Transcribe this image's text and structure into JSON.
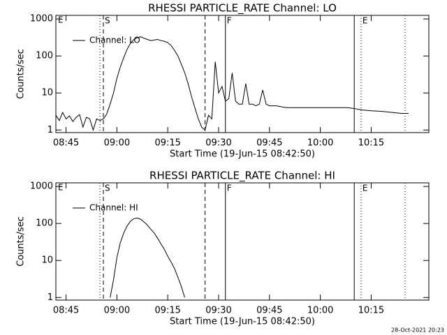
{
  "chart_data": [
    {
      "type": "line",
      "title": "RHESSI PARTICLE_RATE Channel: LO",
      "xlabel": "Start Time (19-Jun-15 08:42:50)",
      "ylabel": "Counts/sec",
      "log_y": true,
      "legend": "upper left",
      "start_label": "E",
      "xlim": [
        "08:42",
        "10:32"
      ],
      "xticks": [
        "08:45",
        "09:00",
        "09:15",
        "09:30",
        "09:45",
        "10:00",
        "10:15"
      ],
      "ylim": [
        0.85,
        1250
      ],
      "yticks": [
        1,
        10,
        100,
        1000
      ],
      "x": [
        "08:42",
        "08:43",
        "08:44",
        "08:45",
        "08:46",
        "08:47",
        "08:48",
        "08:49",
        "08:50",
        "08:51",
        "08:52",
        "08:53",
        "08:54",
        "08:55",
        "08:56",
        "08:57",
        "08:58",
        "08:59",
        "09:00",
        "09:01",
        "09:02",
        "09:03",
        "09:04",
        "09:05",
        "09:06",
        "09:07",
        "09:08",
        "09:09",
        "09:10",
        "09:11",
        "09:12",
        "09:13",
        "09:14",
        "09:15",
        "09:16",
        "09:17",
        "09:18",
        "09:19",
        "09:20",
        "09:21",
        "09:22",
        "09:23",
        "09:24",
        "09:25",
        "09:26",
        "09:27",
        "09:28",
        "09:29",
        "09:30",
        "09:31",
        "09:32",
        "09:33",
        "09:34",
        "09:35",
        "09:36",
        "09:37",
        "09:38",
        "09:39",
        "09:40",
        "09:41",
        "09:42",
        "09:43",
        "09:44",
        "09:45",
        "09:47",
        "09:50",
        "09:53",
        "09:56",
        "10:00",
        "10:04",
        "10:08",
        "10:10",
        "10:12",
        "10:15",
        "10:18",
        "10:21",
        "10:24",
        "10:26"
      ],
      "series": [
        {
          "name": "Channel: LO",
          "color": "#000000",
          "values": [
            2.5,
            1.8,
            3,
            2,
            2.4,
            1.7,
            2.2,
            2.6,
            1.2,
            2.2,
            2,
            1,
            2,
            1.8,
            2,
            2.7,
            5,
            10,
            25,
            50,
            90,
            150,
            220,
            280,
            310,
            330,
            300,
            280,
            260,
            270,
            280,
            260,
            250,
            230,
            190,
            140,
            100,
            60,
            35,
            18,
            8,
            4,
            2,
            1.2,
            1,
            2.5,
            2,
            70,
            10,
            15,
            6,
            7,
            35,
            6,
            5,
            5,
            18,
            5,
            5,
            4.5,
            5,
            12,
            5,
            4.5,
            4.5,
            4,
            4,
            4,
            4,
            4,
            4,
            3.8,
            3.5,
            3.3,
            3.2,
            3,
            2.8,
            2.8
          ]
        }
      ],
      "events": [
        {
          "time": "08:55",
          "style": "dotted"
        },
        {
          "time": "08:56",
          "style": "dashed",
          "label": "S"
        },
        {
          "time": "09:26",
          "style": "dashed"
        },
        {
          "time": "09:32",
          "style": "solid",
          "label": "F"
        },
        {
          "time": "10:10",
          "style": "solid"
        },
        {
          "time": "10:12",
          "style": "dotted",
          "label": "E"
        },
        {
          "time": "10:25",
          "style": "dotted"
        }
      ]
    },
    {
      "type": "line",
      "title": "RHESSI PARTICLE_RATE Channel: HI",
      "xlabel": "Start Time (19-Jun-15 08:42:50)",
      "ylabel": "Counts/sec",
      "log_y": true,
      "legend": "upper left",
      "start_label": "E",
      "xlim": [
        "08:42",
        "10:32"
      ],
      "xticks": [
        "08:45",
        "09:00",
        "09:15",
        "09:30",
        "09:45",
        "10:00",
        "10:15"
      ],
      "ylim": [
        0.85,
        1250
      ],
      "yticks": [
        1,
        10,
        100,
        1000
      ],
      "x": [
        "08:58",
        "08:59",
        "09:00",
        "09:01",
        "09:02",
        "09:03",
        "09:04",
        "09:05",
        "09:06",
        "09:07",
        "09:08",
        "09:09",
        "09:10",
        "09:11",
        "09:12",
        "09:13",
        "09:14",
        "09:15",
        "09:16",
        "09:17",
        "09:18",
        "09:19",
        "09:20"
      ],
      "series": [
        {
          "name": "Channel: HI",
          "color": "#000000",
          "values": [
            1,
            3,
            12,
            30,
            55,
            85,
            115,
            135,
            140,
            130,
            110,
            90,
            70,
            55,
            40,
            28,
            20,
            13,
            9,
            6,
            3.5,
            2,
            1
          ]
        }
      ],
      "events": [
        {
          "time": "08:55",
          "style": "dotted"
        },
        {
          "time": "08:56",
          "style": "dashed",
          "label": "S"
        },
        {
          "time": "09:26",
          "style": "dashed"
        },
        {
          "time": "09:32",
          "style": "solid",
          "label": "F"
        },
        {
          "time": "10:10",
          "style": "solid"
        },
        {
          "time": "10:12",
          "style": "dotted",
          "label": "E"
        },
        {
          "time": "10:25",
          "style": "dotted"
        }
      ]
    }
  ],
  "footer": "28-Oct-2021 20:23"
}
